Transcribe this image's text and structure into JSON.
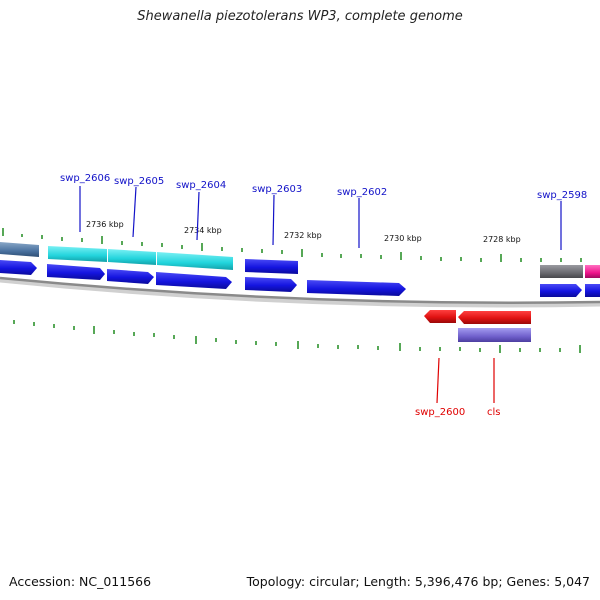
{
  "title": "Shewanella piezotolerans WP3, complete genome",
  "footer": {
    "accession": "Accession: NC_011566",
    "summary": "Topology: circular; Length: 5,396,476 bp; Genes: 5,047"
  },
  "colors": {
    "forward_cds": "#1515e0",
    "reverse_cds": "#e01212",
    "cyan_feature": "#22d4dc",
    "gray_feature": "#6a6a70",
    "magenta_feature": "#f0148c",
    "purple_feature": "#7060cc",
    "backbone": "#8a8a8a",
    "tick": "#1f8a1f",
    "label_forward": "#1212c8",
    "label_reverse": "#e00000"
  },
  "scale_labels": [
    {
      "text": "2736 kbp"
    },
    {
      "text": "2734 kbp"
    },
    {
      "text": "2732 kbp"
    },
    {
      "text": "2730 kbp"
    },
    {
      "text": "2728 kbp"
    }
  ],
  "gene_labels": [
    {
      "text": "swp_2606",
      "strand": "forward"
    },
    {
      "text": "swp_2605",
      "strand": "forward"
    },
    {
      "text": "swp_2604",
      "strand": "forward"
    },
    {
      "text": "swp_2603",
      "strand": "forward"
    },
    {
      "text": "swp_2602",
      "strand": "forward"
    },
    {
      "text": "swp_2598",
      "strand": "forward"
    },
    {
      "text": "swp_2600",
      "strand": "reverse"
    },
    {
      "text": "cls",
      "strand": "reverse"
    }
  ]
}
